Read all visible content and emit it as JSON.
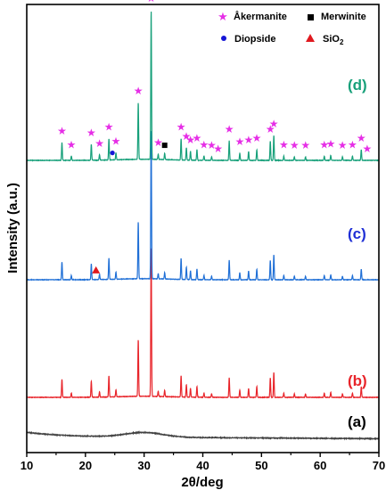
{
  "chart_data": {
    "type": "line",
    "xlabel": "2θ/deg",
    "ylabel": "Intensity (a.u.)",
    "xlim": [
      10,
      70
    ],
    "xticks": [
      "10",
      "20",
      "30",
      "40",
      "50",
      "60",
      "70"
    ],
    "grid": false,
    "legend": {
      "placement": "top-right",
      "entries": [
        {
          "name": "Åkermanite",
          "marker": "star",
          "color": "#e62ee6"
        },
        {
          "name": "Merwinite",
          "marker": "square",
          "color": "#000000"
        },
        {
          "name": "Diopside",
          "marker": "circle",
          "color": "#1515d6"
        },
        {
          "name": "SiO",
          "sub": "2",
          "marker": "triangle",
          "color": "#e0191f"
        }
      ]
    },
    "series": [
      {
        "name": "(a)",
        "label": "(a)",
        "color": "#404040",
        "label_color": "#000000",
        "baseline": 0.45,
        "kind": "amorphous"
      },
      {
        "name": "(b)",
        "label": "(b)",
        "color": "#e8242a",
        "label_color": "#e8242a",
        "baseline": 1.55,
        "kind": "crystalline"
      },
      {
        "name": "(c)",
        "label": "(c)",
        "color": "#1f6fd6",
        "label_color": "#1f2fd6",
        "baseline": 4.85,
        "kind": "crystalline"
      },
      {
        "name": "(d)",
        "label": "(d)",
        "color": "#17a07a",
        "label_color": "#17a07a",
        "baseline": 8.2,
        "kind": "crystalline"
      }
    ],
    "peaks": [
      {
        "x": 16.0,
        "h": 0.5
      },
      {
        "x": 17.6,
        "h": 0.12
      },
      {
        "x": 21.0,
        "h": 0.45
      },
      {
        "x": 22.4,
        "h": 0.15
      },
      {
        "x": 24.0,
        "h": 0.6
      },
      {
        "x": 25.2,
        "h": 0.2
      },
      {
        "x": 29.0,
        "h": 1.6
      },
      {
        "x": 31.2,
        "h": 4.2
      },
      {
        "x": 32.4,
        "h": 0.15
      },
      {
        "x": 33.5,
        "h": 0.18
      },
      {
        "x": 36.3,
        "h": 0.6
      },
      {
        "x": 37.2,
        "h": 0.35
      },
      {
        "x": 37.9,
        "h": 0.25
      },
      {
        "x": 39.0,
        "h": 0.3
      },
      {
        "x": 40.2,
        "h": 0.12
      },
      {
        "x": 41.5,
        "h": 0.1
      },
      {
        "x": 44.5,
        "h": 0.55
      },
      {
        "x": 46.3,
        "h": 0.2
      },
      {
        "x": 47.8,
        "h": 0.25
      },
      {
        "x": 49.2,
        "h": 0.3
      },
      {
        "x": 51.5,
        "h": 0.55
      },
      {
        "x": 52.1,
        "h": 0.7
      },
      {
        "x": 53.8,
        "h": 0.12
      },
      {
        "x": 55.6,
        "h": 0.1
      },
      {
        "x": 57.5,
        "h": 0.1
      },
      {
        "x": 60.7,
        "h": 0.12
      },
      {
        "x": 61.8,
        "h": 0.14
      },
      {
        "x": 63.8,
        "h": 0.1
      },
      {
        "x": 65.5,
        "h": 0.12
      },
      {
        "x": 67.0,
        "h": 0.3
      }
    ],
    "markers_d": {
      "akermanite_x": [
        16.0,
        17.6,
        21.0,
        22.4,
        24.0,
        25.2,
        29.0,
        31.2,
        32.4,
        36.3,
        37.2,
        37.9,
        39.0,
        40.2,
        41.5,
        42.6,
        44.5,
        46.3,
        47.8,
        49.2,
        51.5,
        52.1,
        53.8,
        55.6,
        57.5,
        60.7,
        61.8,
        63.8,
        65.5,
        67.0,
        68.0
      ],
      "merwinite_x": [
        33.5
      ],
      "diopside_x": [
        24.6
      ]
    },
    "markers_c": {
      "sio2_x": [
        21.8
      ]
    }
  }
}
